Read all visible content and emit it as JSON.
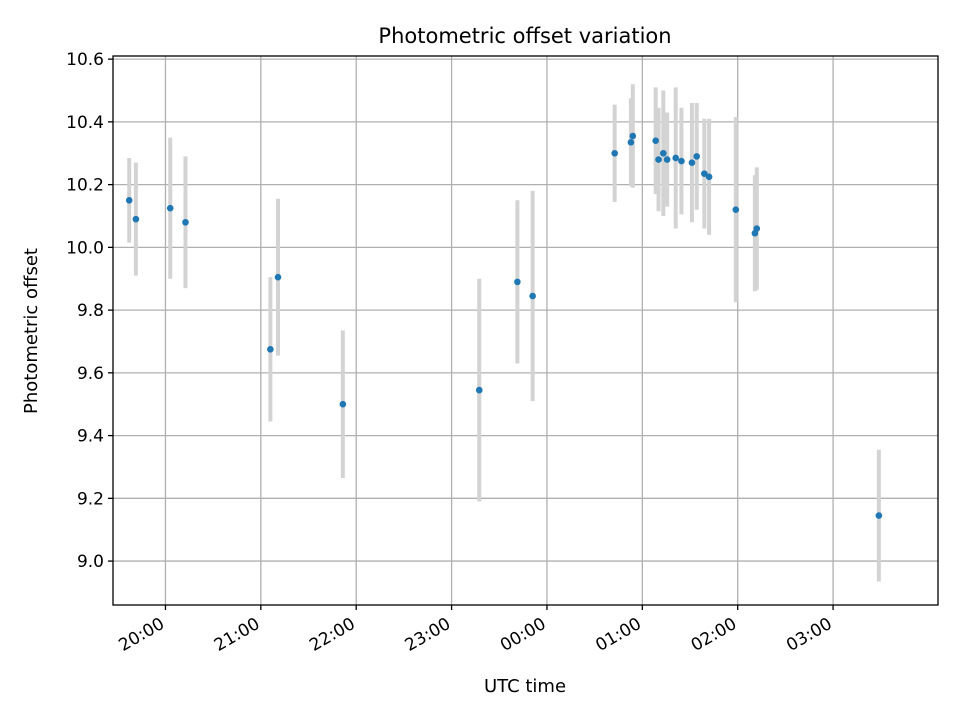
{
  "chart_data": {
    "type": "scatter",
    "title": "Photometric offset variation",
    "xlabel": "UTC time",
    "ylabel": "Photometric offset",
    "x_unit": "hours since 19:00 UTC",
    "xlim": [
      0.45,
      9.1
    ],
    "ylim": [
      8.86,
      10.61
    ],
    "grid": true,
    "x_ticks": [
      {
        "value": 1,
        "label": "20:00"
      },
      {
        "value": 2,
        "label": "21:00"
      },
      {
        "value": 3,
        "label": "22:00"
      },
      {
        "value": 4,
        "label": "23:00"
      },
      {
        "value": 5,
        "label": "00:00"
      },
      {
        "value": 6,
        "label": "01:00"
      },
      {
        "value": 7,
        "label": "02:00"
      },
      {
        "value": 8,
        "label": "03:00"
      }
    ],
    "y_ticks": [
      {
        "value": 9.0,
        "label": "9.0"
      },
      {
        "value": 9.2,
        "label": "9.2"
      },
      {
        "value": 9.4,
        "label": "9.4"
      },
      {
        "value": 9.6,
        "label": "9.6"
      },
      {
        "value": 9.8,
        "label": "9.8"
      },
      {
        "value": 10.0,
        "label": "10.0"
      },
      {
        "value": 10.2,
        "label": "10.2"
      },
      {
        "value": 10.4,
        "label": "10.4"
      },
      {
        "value": 10.6,
        "label": "10.6"
      }
    ],
    "colors": {
      "point": "#1f77b4",
      "errorbar": "#d3d3d3",
      "grid": "#b0b0b0"
    },
    "series": [
      {
        "name": "offset",
        "points": [
          {
            "x": 0.62,
            "y": 10.15,
            "err": 0.135
          },
          {
            "x": 0.69,
            "y": 10.09,
            "err": 0.18
          },
          {
            "x": 1.05,
            "y": 10.125,
            "err": 0.225
          },
          {
            "x": 1.21,
            "y": 10.08,
            "err": 0.21
          },
          {
            "x": 2.1,
            "y": 9.675,
            "err": 0.23
          },
          {
            "x": 2.18,
            "y": 9.905,
            "err": 0.25
          },
          {
            "x": 2.86,
            "y": 9.5,
            "err": 0.235
          },
          {
            "x": 4.29,
            "y": 9.545,
            "err": 0.355
          },
          {
            "x": 4.69,
            "y": 9.89,
            "err": 0.26
          },
          {
            "x": 4.85,
            "y": 9.845,
            "err": 0.335
          },
          {
            "x": 5.71,
            "y": 10.3,
            "err": 0.155
          },
          {
            "x": 5.88,
            "y": 10.335,
            "err": 0.14
          },
          {
            "x": 5.9,
            "y": 10.355,
            "err": 0.165
          },
          {
            "x": 6.14,
            "y": 10.34,
            "err": 0.17
          },
          {
            "x": 6.17,
            "y": 10.28,
            "err": 0.165
          },
          {
            "x": 6.22,
            "y": 10.3,
            "err": 0.2
          },
          {
            "x": 6.26,
            "y": 10.28,
            "err": 0.15
          },
          {
            "x": 6.35,
            "y": 10.285,
            "err": 0.225
          },
          {
            "x": 6.41,
            "y": 10.275,
            "err": 0.17
          },
          {
            "x": 6.52,
            "y": 10.27,
            "err": 0.19
          },
          {
            "x": 6.57,
            "y": 10.29,
            "err": 0.17
          },
          {
            "x": 6.65,
            "y": 10.235,
            "err": 0.175
          },
          {
            "x": 6.7,
            "y": 10.225,
            "err": 0.185
          },
          {
            "x": 6.98,
            "y": 10.12,
            "err": 0.295
          },
          {
            "x": 7.18,
            "y": 10.045,
            "err": 0.185
          },
          {
            "x": 7.2,
            "y": 10.06,
            "err": 0.195
          },
          {
            "x": 8.48,
            "y": 9.145,
            "err": 0.21
          }
        ]
      }
    ]
  }
}
